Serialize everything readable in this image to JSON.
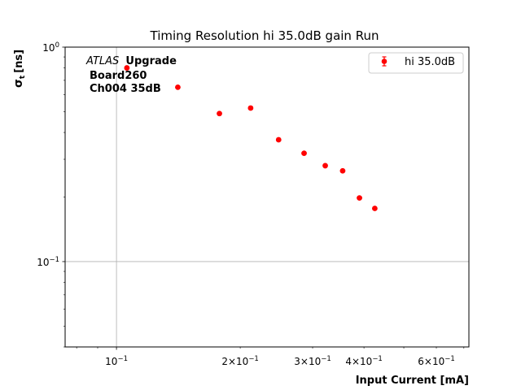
{
  "chart_data": {
    "type": "scatter",
    "title": "Timing Resolution hi 35.0dB gain Run",
    "xlabel": "Input Current [mA]",
    "ylabel_main": "σ",
    "ylabel_sub": "t",
    "ylabel_unit": "[ns]",
    "xscale": "log",
    "yscale": "log",
    "xlim": [
      0.075,
      0.72
    ],
    "ylim": [
      0.04,
      1.0
    ],
    "grid": "major ticks only",
    "legend_position": "top-right",
    "annotation": {
      "italic": "ATLAS",
      "bold": "Upgrade",
      "line2": "Board260",
      "line3": "Ch004 35dB"
    },
    "x_ticks": [
      {
        "value": 0.1,
        "base": "10",
        "exp": "−1",
        "mult": ""
      },
      {
        "value": 0.2,
        "base": "10",
        "exp": "−1",
        "mult": "2×"
      },
      {
        "value": 0.3,
        "base": "10",
        "exp": "−1",
        "mult": "3×"
      },
      {
        "value": 0.4,
        "base": "10",
        "exp": "−1",
        "mult": "4×"
      },
      {
        "value": 0.6,
        "base": "10",
        "exp": "−1",
        "mult": "6×"
      }
    ],
    "y_ticks": [
      {
        "value": 1.0,
        "base": "10",
        "exp": "0"
      },
      {
        "value": 0.1,
        "base": "10",
        "exp": "−1"
      }
    ],
    "series": [
      {
        "name": "hi 35.0dB",
        "color": "#ff0000",
        "x": [
          0.106,
          0.141,
          0.178,
          0.212,
          0.248,
          0.286,
          0.322,
          0.355,
          0.39,
          0.425
        ],
        "y": [
          0.8,
          0.65,
          0.49,
          0.52,
          0.37,
          0.32,
          0.28,
          0.265,
          0.198,
          0.177
        ]
      }
    ]
  }
}
